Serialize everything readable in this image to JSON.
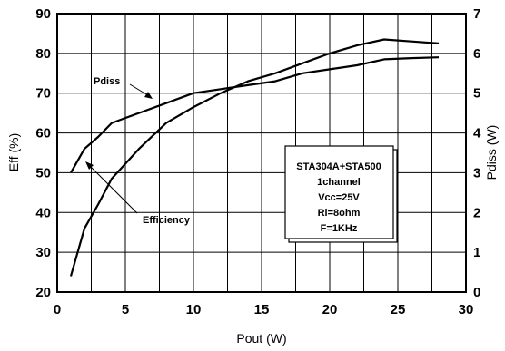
{
  "chart_data": {
    "type": "line",
    "xlabel": "Pout (W)",
    "ylabel_left": "Eff (%)",
    "ylabel_right": "Pdiss (W)",
    "xlim": [
      0,
      30
    ],
    "ylim_left": [
      20,
      90
    ],
    "ylim_right": [
      0,
      7
    ],
    "x_ticks": [
      0,
      5,
      10,
      15,
      20,
      25,
      30
    ],
    "y_left_ticks": [
      20,
      30,
      40,
      50,
      60,
      70,
      80,
      90
    ],
    "y_right_ticks": [
      0,
      1,
      2,
      3,
      4,
      5,
      6,
      7
    ],
    "grid": true,
    "series": [
      {
        "name": "Pdiss",
        "axis": "right",
        "x": [
          1,
          2,
          3,
          4,
          6,
          8,
          10,
          12,
          14,
          16,
          18,
          20,
          22,
          24,
          26,
          28
        ],
        "y": [
          3.0,
          3.6,
          3.9,
          4.25,
          4.5,
          4.75,
          5.0,
          5.1,
          5.2,
          5.3,
          5.5,
          5.6,
          5.7,
          5.85,
          5.88,
          5.9
        ]
      },
      {
        "name": "Efficiency",
        "axis": "left",
        "x": [
          1,
          2,
          3,
          4,
          6,
          8,
          10,
          12,
          14,
          16,
          18,
          20,
          22,
          24,
          26,
          28
        ],
        "y": [
          24,
          36,
          42,
          48.5,
          56,
          62.5,
          66.5,
          70,
          73,
          75,
          77.5,
          80,
          82,
          83.5,
          83,
          82.5
        ]
      }
    ],
    "annotations": [
      "Pdiss",
      "Efficiency"
    ],
    "legend_box": {
      "position": "right-middle",
      "lines": [
        "STA304A+STA500",
        "1channel",
        "Vcc=25V",
        "Rl=8ohm",
        "F=1KHz"
      ]
    }
  }
}
